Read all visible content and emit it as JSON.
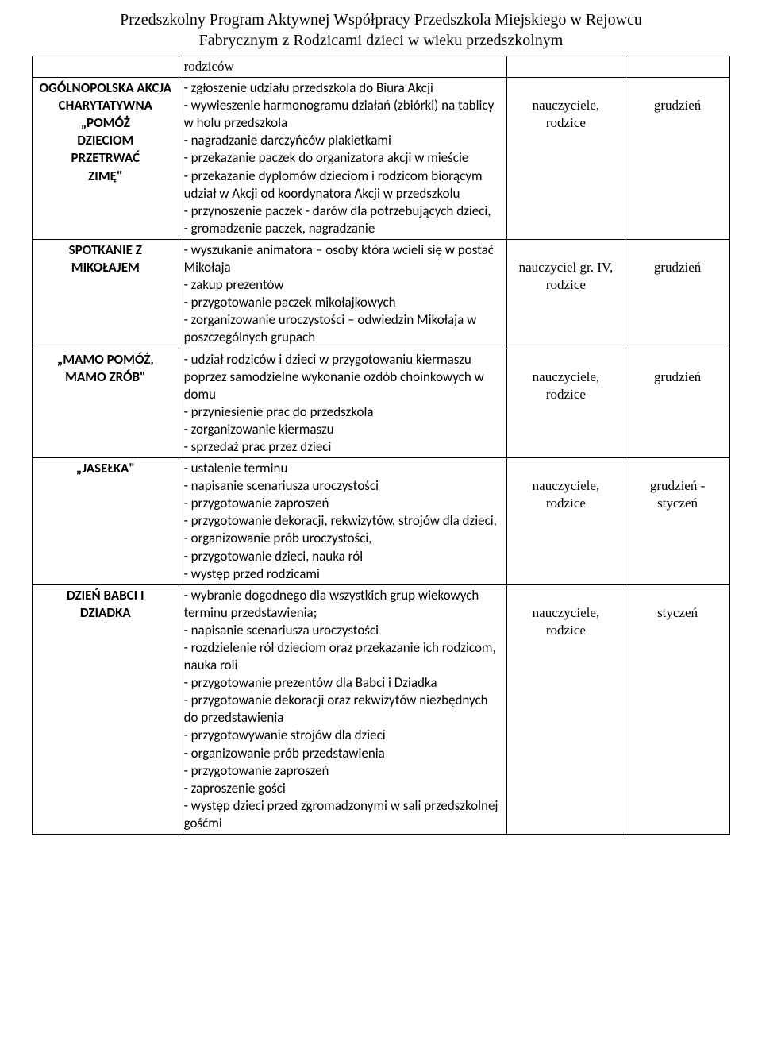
{
  "title_lines": [
    "Przedszkolny Program Aktywnej Współpracy Przedszkola Miejskiego w Rejowcu",
    "Fabrycznym z Rodzicami dzieci w wieku przedszkolnym"
  ],
  "top_row": {
    "col2": "rodziców"
  },
  "rows": [
    {
      "label_lines": [
        "OGÓLNOPOLSKA AKCJA",
        "CHARYTATYWNA",
        "„POMÓŻ",
        "DZIECIOM",
        "PRZETRWAĆ",
        "ZIMĘ\""
      ],
      "desc": "- zgłoszenie udziału przedszkola do Biura Akcji\n- wywieszenie harmonogramu działań (zbiórki) na tablicy w holu przedszkola\n- nagradzanie darczyńców plakietkami\n- przekazanie paczek do organizatora akcji w mieście\n- przekazanie dyplomów dzieciom i rodzicom biorącym udział w Akcji od koordynatora Akcji w przedszkolu\n- przynoszenie paczek - darów dla potrzebujących dzieci,\n- gromadzenie paczek, nagradzanie",
      "who": "nauczyciele,\nrodzice",
      "when": "grudzień"
    },
    {
      "label_lines": [
        "SPOTKANIE Z",
        "MIKOŁAJEM"
      ],
      "desc": "- wyszukanie animatora – osoby która wcieli się w postać Mikołaja\n- zakup prezentów\n- przygotowanie paczek mikołajkowych\n- zorganizowanie uroczystości – odwiedzin Mikołaja w poszczególnych grupach",
      "who": "nauczyciel gr. IV,\nrodzice",
      "when": "grudzień"
    },
    {
      "label_lines": [
        "„MAMO POMÓŻ,",
        "MAMO ZRÓB\""
      ],
      "desc": "- udział rodziców i dzieci w przygotowaniu kiermaszu poprzez samodzielne wykonanie ozdób choinkowych w domu\n- przyniesienie prac do przedszkola\n- zorganizowanie kiermaszu\n- sprzedaż prac przez dzieci",
      "who": "nauczyciele,\nrodzice",
      "when": "grudzień"
    },
    {
      "label_lines": [
        "„JASEŁKA\""
      ],
      "desc": "- ustalenie terminu\n- napisanie scenariusza uroczystości\n- przygotowanie zaproszeń\n- przygotowanie dekoracji, rekwizytów, strojów dla dzieci,\n- organizowanie prób uroczystości,\n- przygotowanie dzieci, nauka ról\n- występ przed rodzicami",
      "who": "nauczyciele,\nrodzice",
      "when": "grudzień -\nstyczeń"
    },
    {
      "label_lines": [
        "DZIEŃ BABCI I",
        "DZIADKA"
      ],
      "desc": "- wybranie dogodnego dla wszystkich grup wiekowych terminu przedstawienia;\n- napisanie scenariusza uroczystości\n- rozdzielenie ról dzieciom oraz przekazanie ich rodzicom, nauka roli\n- przygotowanie prezentów dla Babci i Dziadka\n- przygotowanie dekoracji oraz rekwizytów niezbędnych do przedstawienia\n- przygotowywanie strojów dla dzieci\n- organizowanie prób przedstawienia\n- przygotowanie zaproszeń\n- zaproszenie gości\n- występ dzieci przed zgromadzonymi w sali przedszkolnej gośćmi",
      "who": "nauczyciele,\nrodzice",
      "when": "styczeń"
    }
  ]
}
